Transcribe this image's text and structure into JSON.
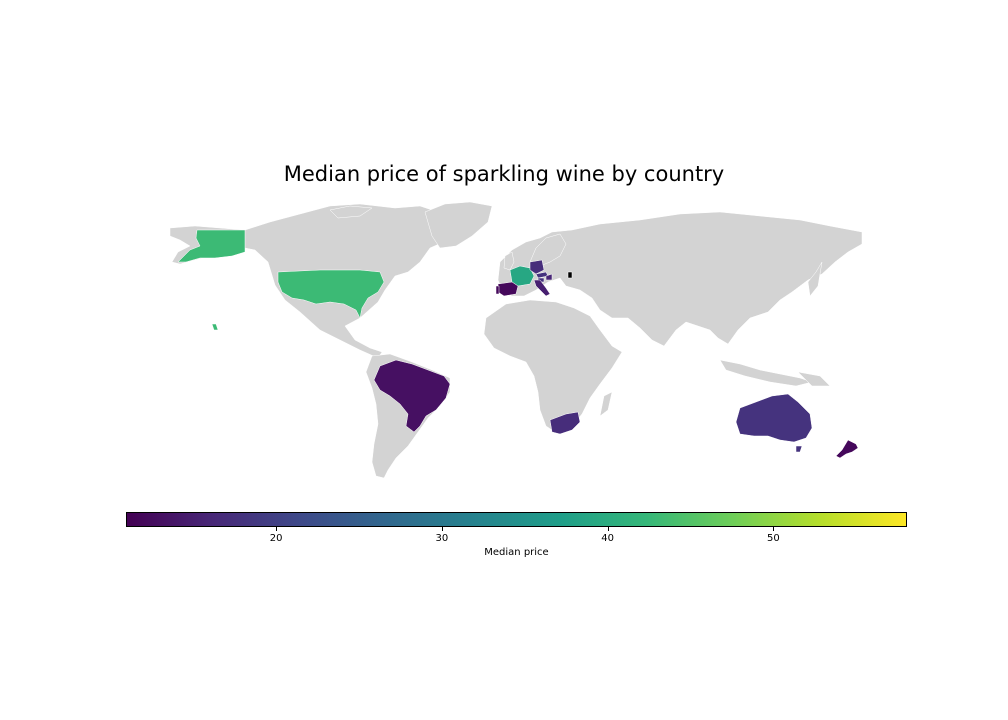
{
  "chart_data": {
    "type": "choropleth",
    "title": "Median price of sparkling wine by country",
    "colorbar": {
      "label": "Median price",
      "colormap": "viridis",
      "range": [
        11,
        58
      ],
      "ticks": [
        20,
        30,
        40,
        50
      ],
      "orientation": "horizontal"
    },
    "missing_color": "#d3d3d3",
    "regions": [
      {
        "country": "United States",
        "median_price": 43
      },
      {
        "country": "France",
        "median_price": 39
      },
      {
        "country": "Spain",
        "median_price": 12
      },
      {
        "country": "Italy",
        "median_price": 15
      },
      {
        "country": "Germany",
        "median_price": 17
      },
      {
        "country": "Portugal",
        "median_price": 12
      },
      {
        "country": "Austria",
        "median_price": 18
      },
      {
        "country": "Hungary",
        "median_price": 16
      },
      {
        "country": "Slovenia",
        "median_price": 18
      },
      {
        "country": "Brazil",
        "median_price": 13
      },
      {
        "country": "South Africa",
        "median_price": 17
      },
      {
        "country": "Australia",
        "median_price": 18
      },
      {
        "country": "New Zealand",
        "median_price": 12
      }
    ]
  }
}
